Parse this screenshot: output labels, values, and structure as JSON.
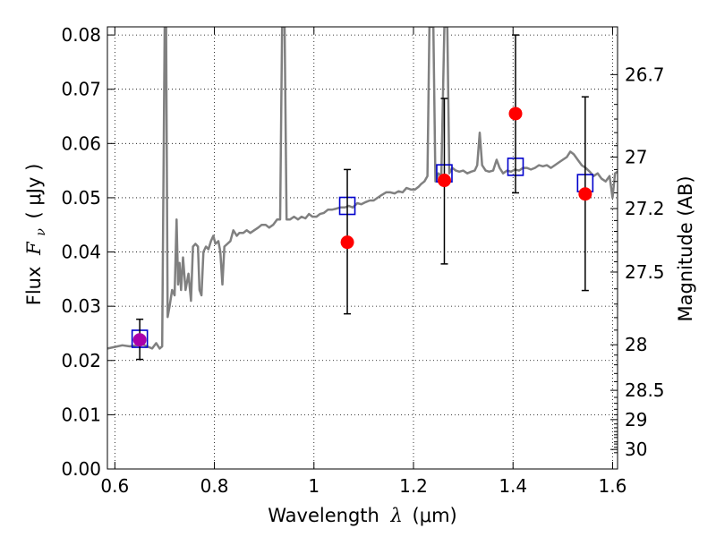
{
  "chart_data": {
    "type": "scatter",
    "xlabel_text": "Wavelength",
    "xlabel_symbol": "λ",
    "xlabel_unit": "(μm)",
    "ylabel_text": "Flux",
    "ylabel_symbol": "F",
    "ylabel_subscript": "ν",
    "ylabel_unit": "( μJy )",
    "y2label": "Magnitude (AB)",
    "xlim": [
      0.585,
      1.61
    ],
    "ylim": [
      0.0,
      0.0815
    ],
    "grid": true,
    "x_ticks": [
      {
        "value": 0.6,
        "label": "0.6"
      },
      {
        "value": 0.8,
        "label": "0.8"
      },
      {
        "value": 1.0,
        "label": "1"
      },
      {
        "value": 1.2,
        "label": "1.2"
      },
      {
        "value": 1.4,
        "label": "1.4"
      },
      {
        "value": 1.6,
        "label": "1.6"
      }
    ],
    "y_ticks": [
      {
        "value": 0.0,
        "label": "0.00"
      },
      {
        "value": 0.01,
        "label": "0.01"
      },
      {
        "value": 0.02,
        "label": "0.02"
      },
      {
        "value": 0.03,
        "label": "0.03"
      },
      {
        "value": 0.04,
        "label": "0.04"
      },
      {
        "value": 0.05,
        "label": "0.05"
      },
      {
        "value": 0.06,
        "label": "0.06"
      },
      {
        "value": 0.07,
        "label": "0.07"
      },
      {
        "value": 0.08,
        "label": "0.08"
      }
    ],
    "y2_ticks": [
      {
        "flux": 0.0727,
        "label": "26.7"
      },
      {
        "flux": 0.0575,
        "label": "27"
      },
      {
        "flux": 0.048,
        "label": "27.2"
      },
      {
        "flux": 0.0363,
        "label": "27.5"
      },
      {
        "flux": 0.0229,
        "label": "28"
      },
      {
        "flux": 0.0145,
        "label": "28.5"
      },
      {
        "flux": 0.0091,
        "label": "29"
      },
      {
        "flux": 0.0036,
        "label": "30"
      }
    ],
    "y2_minor_ticks_flux": [
      0.07,
      0.0672,
      0.0645,
      0.062,
      0.0596,
      0.0552,
      0.053,
      0.0509,
      0.0458,
      0.0438,
      0.0419,
      0.04,
      0.0382,
      0.0332,
      0.0304,
      0.0279,
      0.0256,
      0.021,
      0.0192,
      0.0176,
      0.0161,
      0.0132,
      0.0121,
      0.011,
      0.01,
      0.0083,
      0.0076,
      0.0069,
      0.0063,
      0.0058,
      0.005,
      0.0046,
      0.004,
      0.003
    ],
    "series": [
      {
        "kind": "line",
        "color": "#808080",
        "points": [
          [
            0.585,
            0.0222
          ],
          [
            0.6,
            0.0225
          ],
          [
            0.615,
            0.0228
          ],
          [
            0.63,
            0.0226
          ],
          [
            0.645,
            0.0228
          ],
          [
            0.655,
            0.023
          ],
          [
            0.665,
            0.0226
          ],
          [
            0.675,
            0.0222
          ],
          [
            0.683,
            0.0232
          ],
          [
            0.69,
            0.0222
          ],
          [
            0.695,
            0.0226
          ],
          [
            0.7,
            0.0815
          ],
          [
            0.703,
            0.0815
          ],
          [
            0.706,
            0.028
          ],
          [
            0.71,
            0.03
          ],
          [
            0.715,
            0.033
          ],
          [
            0.72,
            0.032
          ],
          [
            0.724,
            0.046
          ],
          [
            0.727,
            0.034
          ],
          [
            0.73,
            0.038
          ],
          [
            0.733,
            0.033
          ],
          [
            0.737,
            0.039
          ],
          [
            0.742,
            0.033
          ],
          [
            0.748,
            0.036
          ],
          [
            0.753,
            0.031
          ],
          [
            0.757,
            0.041
          ],
          [
            0.762,
            0.0415
          ],
          [
            0.767,
            0.041
          ],
          [
            0.77,
            0.033
          ],
          [
            0.774,
            0.032
          ],
          [
            0.778,
            0.04
          ],
          [
            0.783,
            0.041
          ],
          [
            0.788,
            0.0405
          ],
          [
            0.793,
            0.042
          ],
          [
            0.798,
            0.043
          ],
          [
            0.802,
            0.0415
          ],
          [
            0.808,
            0.042
          ],
          [
            0.812,
            0.04
          ],
          [
            0.816,
            0.034
          ],
          [
            0.82,
            0.041
          ],
          [
            0.826,
            0.0415
          ],
          [
            0.832,
            0.042
          ],
          [
            0.838,
            0.044
          ],
          [
            0.845,
            0.043
          ],
          [
            0.85,
            0.0435
          ],
          [
            0.858,
            0.0435
          ],
          [
            0.865,
            0.044
          ],
          [
            0.872,
            0.0435
          ],
          [
            0.88,
            0.044
          ],
          [
            0.888,
            0.0445
          ],
          [
            0.895,
            0.045
          ],
          [
            0.903,
            0.045
          ],
          [
            0.91,
            0.0445
          ],
          [
            0.918,
            0.045
          ],
          [
            0.926,
            0.046
          ],
          [
            0.932,
            0.046
          ],
          [
            0.936,
            0.0815
          ],
          [
            0.941,
            0.0815
          ],
          [
            0.945,
            0.046
          ],
          [
            0.952,
            0.046
          ],
          [
            0.96,
            0.0465
          ],
          [
            0.968,
            0.046
          ],
          [
            0.975,
            0.0465
          ],
          [
            0.983,
            0.0462
          ],
          [
            0.99,
            0.047
          ],
          [
            0.997,
            0.0465
          ],
          [
            1.005,
            0.0465
          ],
          [
            1.012,
            0.047
          ],
          [
            1.02,
            0.0472
          ],
          [
            1.028,
            0.0478
          ],
          [
            1.036,
            0.0478
          ],
          [
            1.045,
            0.048
          ],
          [
            1.053,
            0.0482
          ],
          [
            1.062,
            0.0482
          ],
          [
            1.07,
            0.0485
          ],
          [
            1.078,
            0.0482
          ],
          [
            1.087,
            0.049
          ],
          [
            1.095,
            0.0488
          ],
          [
            1.104,
            0.0492
          ],
          [
            1.112,
            0.0495
          ],
          [
            1.12,
            0.0495
          ],
          [
            1.128,
            0.05
          ],
          [
            1.136,
            0.0505
          ],
          [
            1.145,
            0.051
          ],
          [
            1.153,
            0.051
          ],
          [
            1.162,
            0.0508
          ],
          [
            1.17,
            0.0512
          ],
          [
            1.178,
            0.051
          ],
          [
            1.186,
            0.0518
          ],
          [
            1.195,
            0.0515
          ],
          [
            1.203,
            0.0515
          ],
          [
            1.21,
            0.052
          ],
          [
            1.215,
            0.0525
          ],
          [
            1.222,
            0.053
          ],
          [
            1.228,
            0.054
          ],
          [
            1.232,
            0.0815
          ],
          [
            1.24,
            0.0815
          ],
          [
            1.244,
            0.053
          ],
          [
            1.25,
            0.0545
          ],
          [
            1.256,
            0.054
          ],
          [
            1.262,
            0.0815
          ],
          [
            1.268,
            0.0815
          ],
          [
            1.272,
            0.0545
          ],
          [
            1.278,
            0.0555
          ],
          [
            1.285,
            0.055
          ],
          [
            1.292,
            0.0548
          ],
          [
            1.3,
            0.055
          ],
          [
            1.308,
            0.0545
          ],
          [
            1.316,
            0.0548
          ],
          [
            1.323,
            0.055
          ],
          [
            1.328,
            0.056
          ],
          [
            1.333,
            0.062
          ],
          [
            1.338,
            0.056
          ],
          [
            1.345,
            0.055
          ],
          [
            1.352,
            0.0548
          ],
          [
            1.36,
            0.055
          ],
          [
            1.367,
            0.057
          ],
          [
            1.373,
            0.0555
          ],
          [
            1.38,
            0.0545
          ],
          [
            1.388,
            0.055
          ],
          [
            1.396,
            0.0548
          ],
          [
            1.404,
            0.0552
          ],
          [
            1.412,
            0.055
          ],
          [
            1.42,
            0.0555
          ],
          [
            1.428,
            0.0555
          ],
          [
            1.436,
            0.0552
          ],
          [
            1.444,
            0.0555
          ],
          [
            1.452,
            0.056
          ],
          [
            1.46,
            0.0558
          ],
          [
            1.468,
            0.056
          ],
          [
            1.476,
            0.0555
          ],
          [
            1.484,
            0.056
          ],
          [
            1.492,
            0.0565
          ],
          [
            1.5,
            0.057
          ],
          [
            1.508,
            0.0575
          ],
          [
            1.515,
            0.0585
          ],
          [
            1.522,
            0.058
          ],
          [
            1.53,
            0.057
          ],
          [
            1.538,
            0.056
          ],
          [
            1.546,
            0.0555
          ],
          [
            1.554,
            0.0548
          ],
          [
            1.562,
            0.054
          ],
          [
            1.57,
            0.0545
          ],
          [
            1.578,
            0.0535
          ],
          [
            1.586,
            0.053
          ],
          [
            1.594,
            0.054
          ],
          [
            1.6,
            0.05
          ],
          [
            1.605,
            0.0545
          ],
          [
            1.61,
            0.0548
          ]
        ]
      },
      {
        "kind": "markers",
        "shape": "square",
        "color": "#0000cc",
        "points": [
          [
            0.65,
            0.024
          ],
          [
            1.067,
            0.0485
          ],
          [
            1.262,
            0.0545
          ],
          [
            1.405,
            0.0557
          ],
          [
            1.545,
            0.0527
          ]
        ]
      },
      {
        "kind": "markers",
        "shape": "circle",
        "color": "#ff0000",
        "points": [
          {
            "x": 0.65,
            "y": 0.0238,
            "yerr": [
              0.0202,
              0.0276
            ],
            "color": "#aa00aa"
          },
          {
            "x": 1.067,
            "y": 0.0418,
            "yerr": [
              0.0286,
              0.0552
            ]
          },
          {
            "x": 1.262,
            "y": 0.0532,
            "yerr": [
              0.0378,
              0.0683
            ]
          },
          {
            "x": 1.405,
            "y": 0.0655,
            "yerr": [
              0.0509,
              0.08
            ]
          },
          {
            "x": 1.545,
            "y": 0.0507,
            "yerr": [
              0.0329,
              0.0686
            ]
          }
        ]
      }
    ]
  }
}
